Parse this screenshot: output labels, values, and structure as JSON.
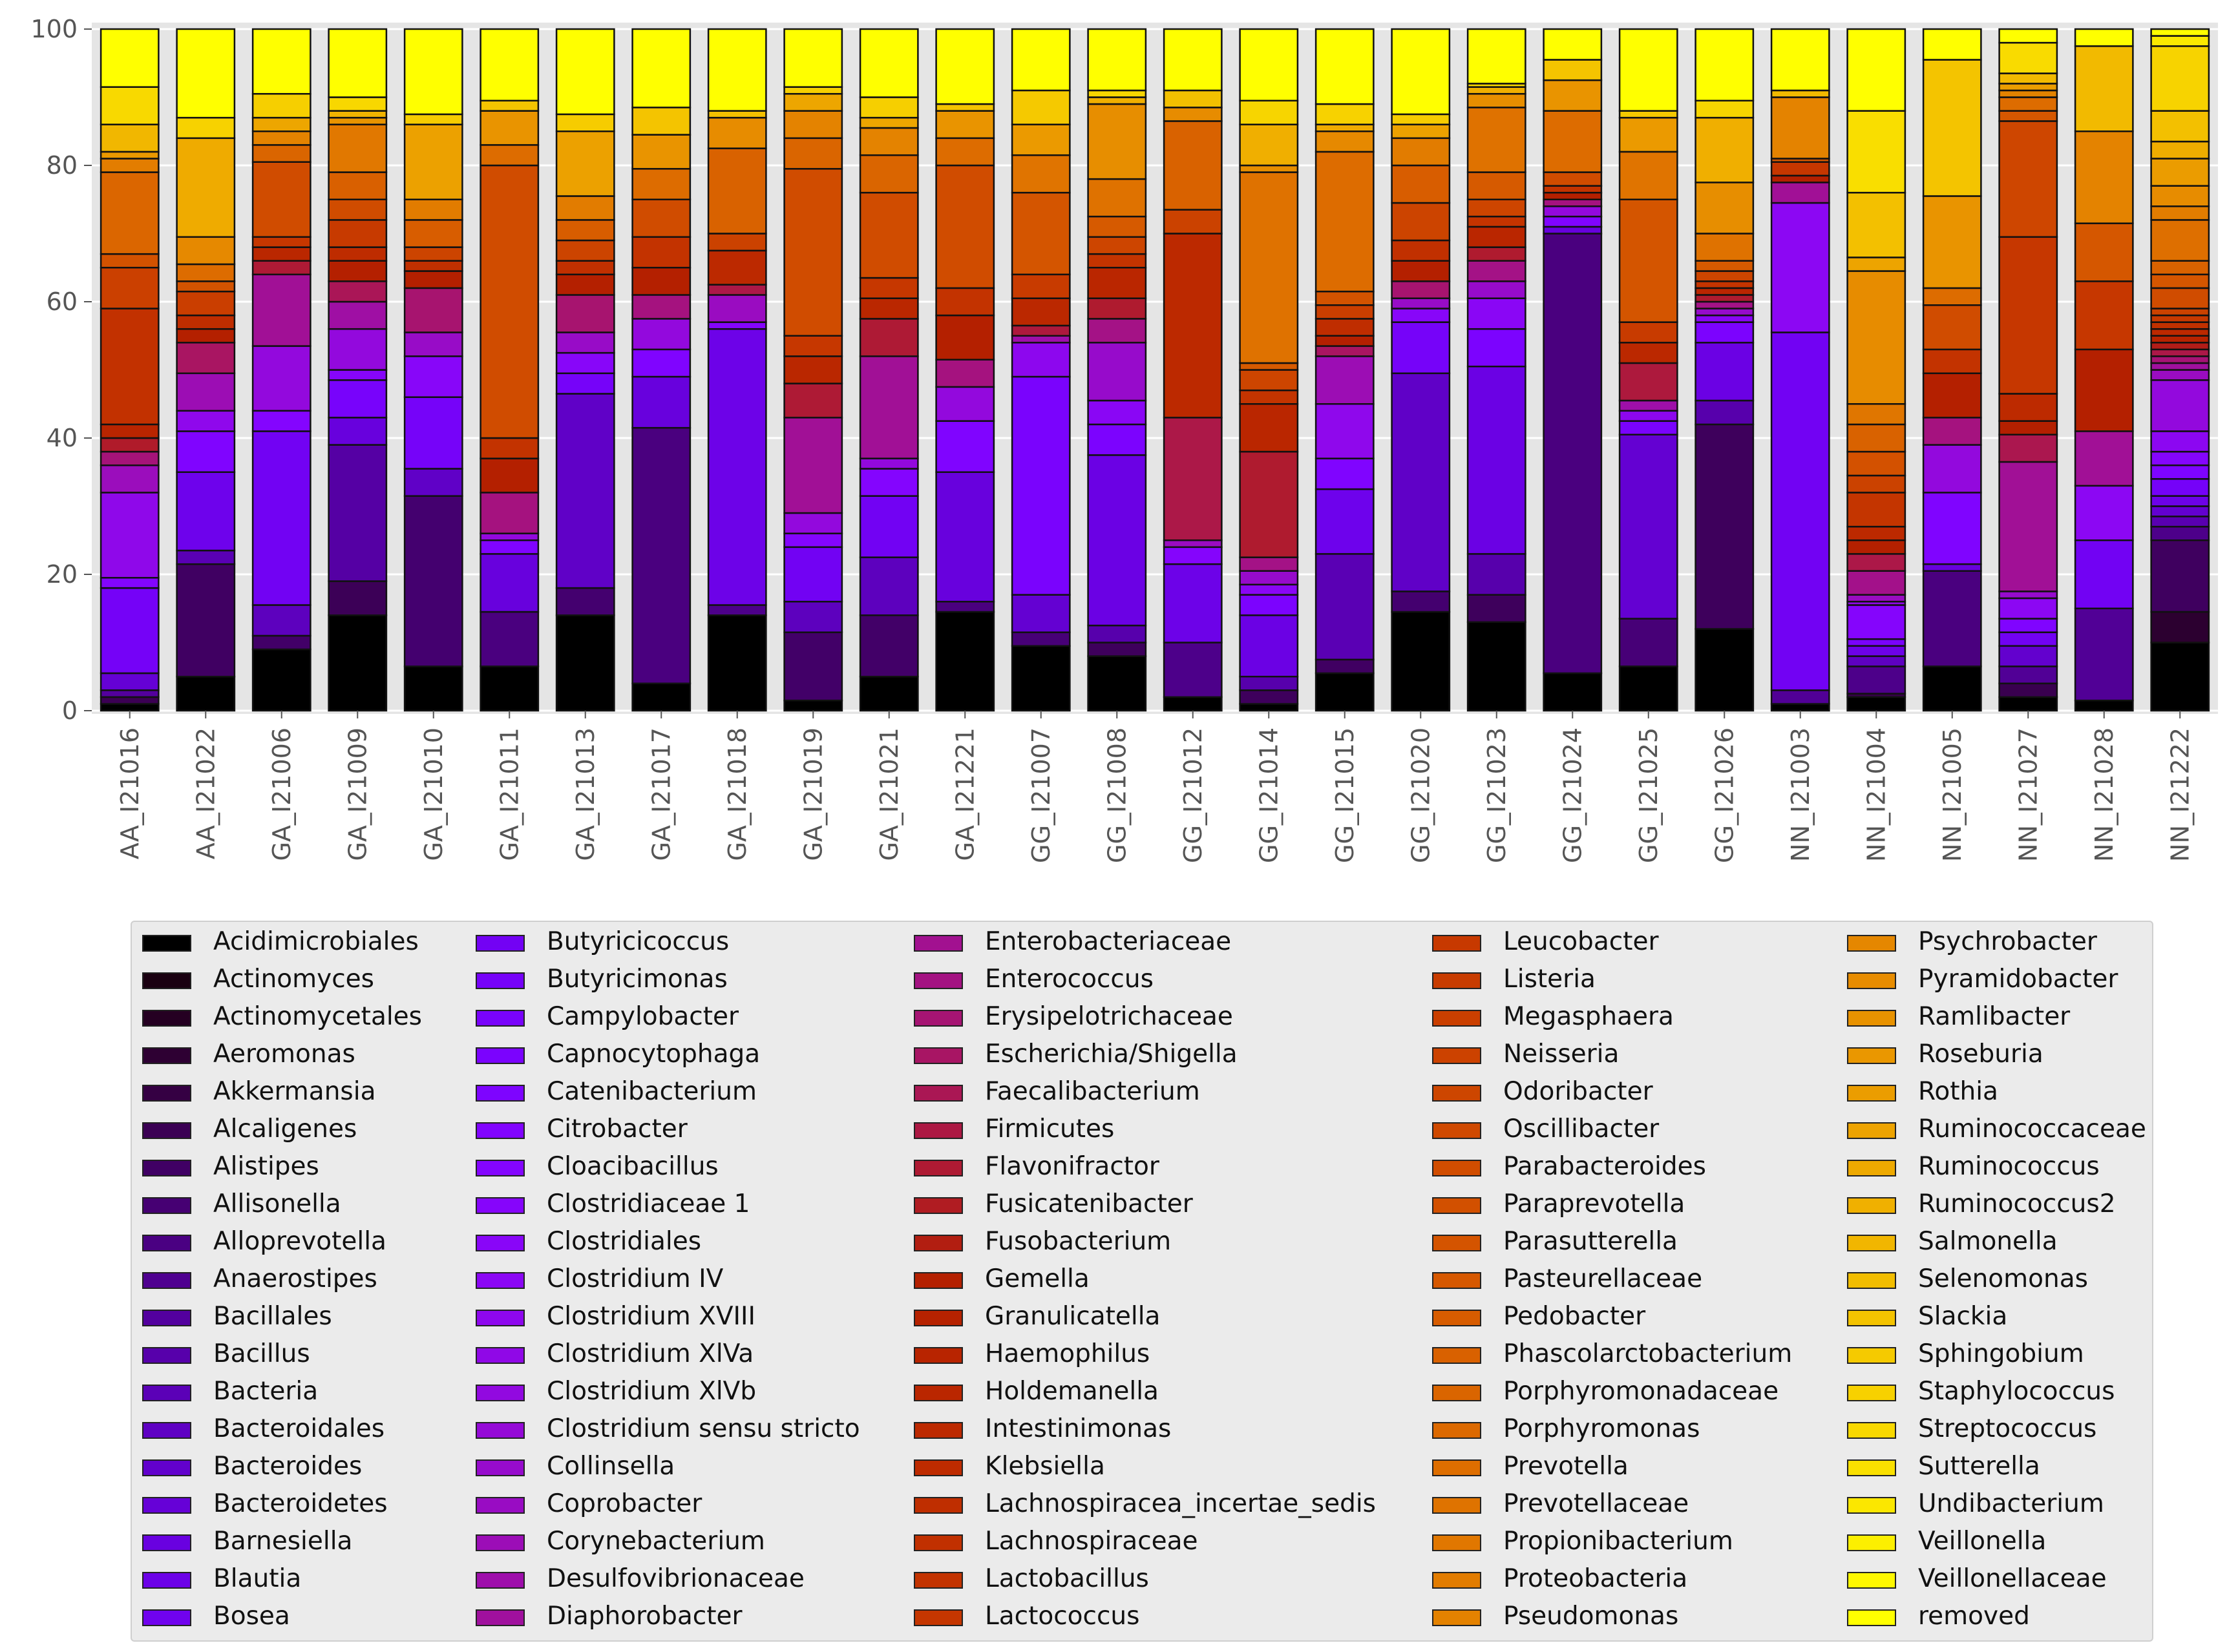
{
  "chart_data": {
    "type": "bar",
    "stacked": true,
    "title": "",
    "xlabel": "",
    "ylabel": "",
    "ylim": [
      0,
      100
    ],
    "yticks": [
      0,
      20,
      40,
      60,
      80,
      100
    ],
    "grid": true,
    "legend_position": "bottom",
    "categories": [
      "AA_I21016",
      "AA_I21022",
      "GA_I21006",
      "GA_I21009",
      "GA_I21010",
      "GA_I21011",
      "GA_I21013",
      "GA_I21017",
      "GA_I21018",
      "GA_I21019",
      "GA_I21021",
      "GA_I21221",
      "GG_I21007",
      "GG_I21008",
      "GG_I21012",
      "GG_I21014",
      "GG_I21015",
      "GG_I21020",
      "GG_I21023",
      "GG_I21024",
      "GG_I21025",
      "GG_I21026",
      "NN_I21003",
      "NN_I21004",
      "NN_I21005",
      "NN_I21027",
      "NN_I21028",
      "NN_I21222"
    ],
    "bars": [
      {
        "category": "AA_I21016",
        "boundaries": [
          1,
          2,
          3,
          5.5,
          18,
          19.5,
          32,
          36,
          38,
          40,
          42,
          59,
          65,
          67,
          79,
          81,
          82,
          86,
          91.5,
          100
        ]
      },
      {
        "category": "AA_I21022",
        "boundaries": [
          5,
          21.5,
          23.5,
          35,
          41,
          44,
          49.5,
          54,
          56,
          58,
          61.5,
          63,
          65.5,
          69.5,
          84,
          87,
          100
        ]
      },
      {
        "category": "GA_I21006",
        "boundaries": [
          9,
          11,
          15.5,
          41,
          44,
          53.5,
          64,
          66,
          68,
          69.5,
          80.5,
          83,
          85,
          87,
          90.5,
          100
        ]
      },
      {
        "category": "GA_I21009",
        "boundaries": [
          14,
          19,
          39,
          43,
          48.5,
          50,
          56,
          60,
          63,
          66,
          68,
          72,
          75,
          79,
          86,
          87,
          88,
          90,
          100
        ]
      },
      {
        "category": "GA_I21010",
        "boundaries": [
          6.5,
          31.5,
          35.5,
          46,
          52,
          55.5,
          62,
          64.5,
          66,
          68,
          72,
          75,
          86,
          87.5,
          100
        ]
      },
      {
        "category": "GA_I21011",
        "boundaries": [
          6.5,
          14.5,
          23,
          25,
          26,
          32,
          37,
          40,
          80,
          83,
          88,
          89.5,
          100
        ]
      },
      {
        "category": "GA_I21013",
        "boundaries": [
          14,
          18,
          46.5,
          49.5,
          52.5,
          55.5,
          61,
          64,
          66,
          69,
          72,
          75.5,
          85,
          87.5,
          100
        ]
      },
      {
        "category": "GA_I21017",
        "boundaries": [
          4,
          41.5,
          49,
          53,
          57.5,
          61,
          65,
          69.5,
          75,
          79.5,
          84.5,
          88.5,
          100
        ]
      },
      {
        "category": "GA_I21018",
        "boundaries": [
          14,
          15.5,
          56,
          57,
          61,
          62.5,
          67.5,
          70,
          82.5,
          87,
          88,
          100
        ]
      },
      {
        "category": "GA_I21019",
        "boundaries": [
          1.5,
          11.5,
          16,
          24,
          26,
          29,
          43,
          48,
          52,
          55,
          79.5,
          84,
          88,
          90.5,
          91.5,
          100
        ]
      },
      {
        "category": "GA_I21021",
        "boundaries": [
          5,
          14,
          22.5,
          31.5,
          35.5,
          37,
          52,
          57.5,
          60.5,
          63.5,
          76,
          81.5,
          85.5,
          87,
          90,
          100
        ]
      },
      {
        "category": "GA_I21221",
        "boundaries": [
          14.5,
          16,
          35,
          42.5,
          47.5,
          51.5,
          58,
          62,
          80,
          84,
          88,
          89,
          100
        ]
      },
      {
        "category": "GG_I21007",
        "boundaries": [
          9.5,
          11.5,
          17,
          49,
          54,
          55,
          56.5,
          60.5,
          64,
          76,
          81.5,
          86,
          91,
          100
        ]
      },
      {
        "category": "GG_I21008",
        "boundaries": [
          8,
          10,
          12.5,
          37.5,
          42,
          45.5,
          54,
          57.5,
          60.5,
          65,
          67,
          69.5,
          72.5,
          78,
          89,
          90,
          91,
          100
        ]
      },
      {
        "category": "GG_I21012",
        "boundaries": [
          2,
          10,
          21.5,
          24,
          25,
          43,
          70,
          73.5,
          86.5,
          88.5,
          91,
          100
        ]
      },
      {
        "category": "GG_I21014",
        "boundaries": [
          1,
          3,
          5,
          14,
          17,
          18.5,
          20.5,
          22.5,
          38,
          45,
          47,
          50,
          51,
          79,
          80,
          86,
          89.5,
          100
        ]
      },
      {
        "category": "GG_I21015",
        "boundaries": [
          5.5,
          7.5,
          23,
          32.5,
          37,
          45,
          52,
          53.5,
          55,
          57.5,
          59.5,
          61.5,
          82,
          85,
          86,
          89,
          100
        ]
      },
      {
        "category": "GG_I21020",
        "boundaries": [
          14.5,
          17.5,
          49.5,
          57,
          59,
          60.5,
          63,
          66,
          69,
          74.5,
          80,
          84,
          86,
          87.5,
          100
        ]
      },
      {
        "category": "GG_I21023",
        "boundaries": [
          13,
          17,
          23,
          50.5,
          56,
          60.5,
          63,
          66,
          68,
          71,
          72.5,
          75,
          79,
          88.5,
          90.5,
          91.5,
          92,
          100
        ]
      },
      {
        "category": "GG_I21024",
        "boundaries": [
          5.5,
          70,
          71,
          72.5,
          74,
          75,
          76,
          77,
          79,
          88,
          92.5,
          95.5,
          100
        ]
      },
      {
        "category": "GG_I21025",
        "boundaries": [
          6.5,
          13.5,
          40.5,
          42.5,
          44,
          45.5,
          51,
          54,
          57,
          75,
          82,
          87,
          88,
          100
        ]
      },
      {
        "category": "GG_I21026",
        "boundaries": [
          12,
          42,
          45.5,
          54,
          57,
          58,
          59,
          60,
          61,
          62,
          63,
          64.5,
          66,
          70,
          77.5,
          87,
          89.5,
          100
        ]
      },
      {
        "category": "NN_I21003",
        "boundaries": [
          1,
          3,
          55.5,
          74.5,
          77.5,
          78.5,
          80.5,
          81,
          90,
          91,
          100
        ]
      },
      {
        "category": "NN_I21004",
        "boundaries": [
          2,
          2.5,
          6.5,
          8,
          9.5,
          10.5,
          15.5,
          16,
          17,
          20.5,
          23,
          25,
          27,
          32,
          34.5,
          38,
          42,
          45,
          64.5,
          66.5,
          76,
          88,
          100
        ]
      },
      {
        "category": "NN_I21005",
        "boundaries": [
          6.5,
          20.5,
          21.5,
          32,
          39,
          43,
          49.5,
          53,
          59.5,
          62,
          75.5,
          95.5,
          100
        ]
      },
      {
        "category": "NN_I21027",
        "boundaries": [
          2,
          4,
          6.5,
          9.5,
          11.5,
          13.5,
          16.5,
          17.5,
          36.5,
          40.5,
          42.5,
          46.5,
          69.5,
          86.5,
          88,
          90,
          91,
          92,
          93.5,
          98,
          100
        ]
      },
      {
        "category": "NN_I21028",
        "boundaries": [
          1.5,
          15,
          25,
          33,
          41,
          53,
          63,
          71.5,
          85,
          97.5,
          100
        ]
      },
      {
        "category": "NN_I21222",
        "boundaries": [
          10,
          14.5,
          25,
          27,
          28.5,
          30,
          31.5,
          34,
          36,
          38,
          41,
          48.5,
          50,
          51,
          52,
          53,
          54,
          55,
          56,
          57,
          58,
          59,
          62,
          64,
          66,
          72,
          74,
          77,
          81,
          83.5,
          88,
          97.5,
          99,
          100
        ]
      }
    ],
    "legend": [
      "Acidimicrobiales",
      "Actinomyces",
      "Actinomycetales",
      "Aeromonas",
      "Akkermansia",
      "Alcaligenes",
      "Alistipes",
      "Allisonella",
      "Alloprevotella",
      "Anaerostipes",
      "Bacillales",
      "Bacillus",
      "Bacteria",
      "Bacteroidales",
      "Bacteroides",
      "Bacteroidetes",
      "Barnesiella",
      "Blautia",
      "Bosea",
      "Butyricicoccus",
      "Butyricimonas",
      "Campylobacter",
      "Capnocytophaga",
      "Catenibacterium",
      "Citrobacter",
      "Cloacibacillus",
      "Clostridiaceae 1",
      "Clostridiales",
      "Clostridium IV",
      "Clostridium XVIII",
      "Clostridium XlVa",
      "Clostridium XlVb",
      "Clostridium sensu stricto",
      "Collinsella",
      "Coprobacter",
      "Corynebacterium",
      "Desulfovibrionaceae",
      "Diaphorobacter",
      "Enterobacteriaceae",
      "Enterococcus",
      "Erysipelotrichaceae",
      "Escherichia/Shigella",
      "Faecalibacterium",
      "Firmicutes",
      "Flavonifractor",
      "Fusicatenibacter",
      "Fusobacterium",
      "Gemella",
      "Granulicatella",
      "Haemophilus",
      "Holdemanella",
      "Intestinimonas",
      "Klebsiella",
      "Lachnospiracea_incertae_sedis",
      "Lachnospiraceae",
      "Lactobacillus",
      "Lactococcus",
      "Leucobacter",
      "Listeria",
      "Megasphaera",
      "Neisseria",
      "Odoribacter",
      "Oscillibacter",
      "Parabacteroides",
      "Paraprevotella",
      "Parasutterella",
      "Pasteurellaceae",
      "Pedobacter",
      "Phascolarctobacterium",
      "Porphyromonadaceae",
      "Porphyromonas",
      "Prevotella",
      "Prevotellaceae",
      "Propionibacterium",
      "Proteobacteria",
      "Pseudomonas",
      "Psychrobacter",
      "Pyramidobacter",
      "Ramlibacter",
      "Roseburia",
      "Rothia",
      "Ruminococcaceae",
      "Ruminococcus",
      "Ruminococcus2",
      "Salmonella",
      "Selenomonas",
      "Slackia",
      "Sphingobium",
      "Staphylococcus",
      "Streptococcus",
      "Sutterella",
      "Undibacterium",
      "Veillonella",
      "Veillonellaceae",
      "removed"
    ]
  }
}
